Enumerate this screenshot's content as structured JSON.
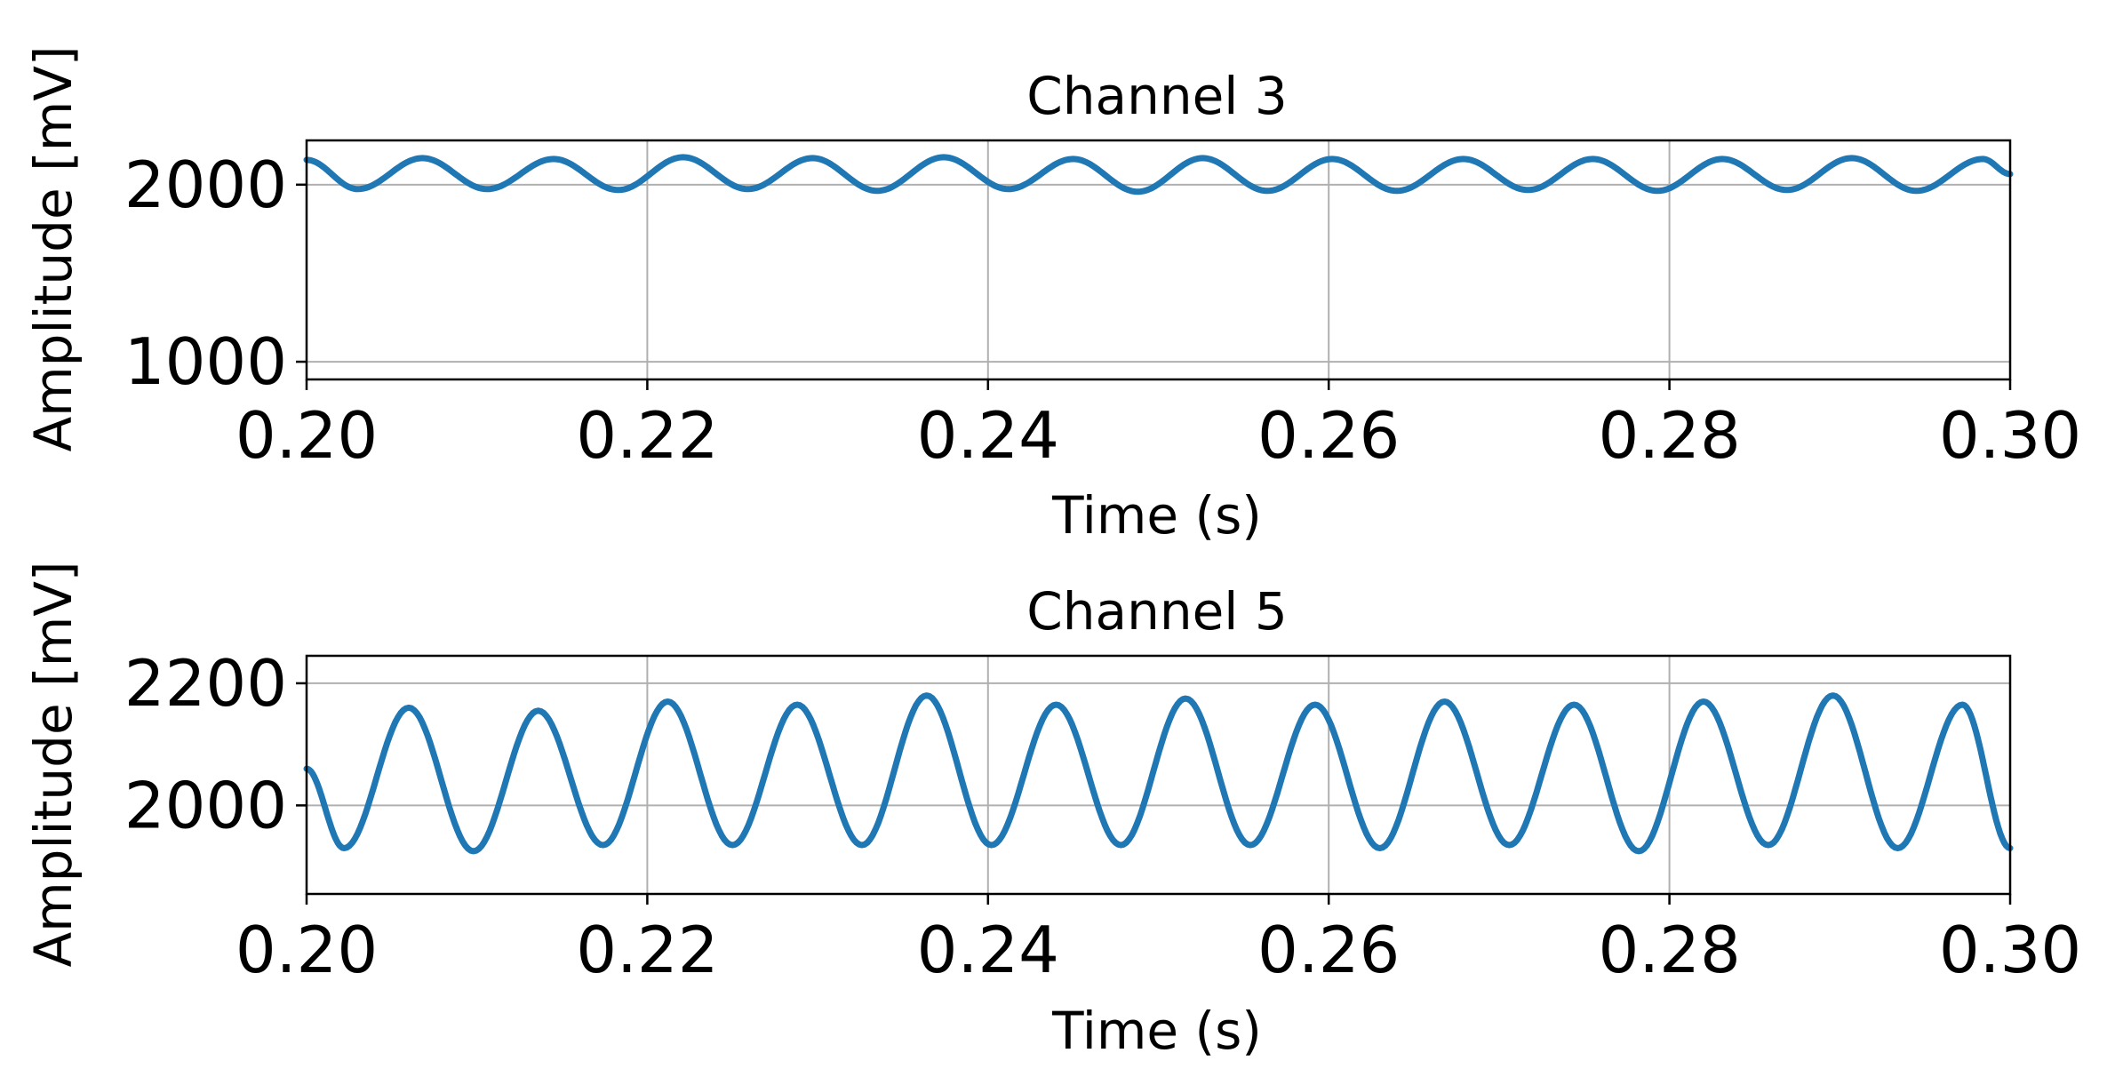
{
  "chart_data": [
    {
      "type": "line",
      "title": "Channel 3",
      "xlabel": "Time (s)",
      "ylabel": "Amplitude [mV]",
      "xlim": [
        0.2,
        0.3
      ],
      "ylim": [
        900,
        2250
      ],
      "xticks": [
        0.2,
        0.22,
        0.24,
        0.26,
        0.28,
        0.3
      ],
      "xtick_labels": [
        "0.20",
        "0.22",
        "0.24",
        "0.26",
        "0.28",
        "0.30"
      ],
      "yticks": [
        1000,
        2000
      ],
      "ytick_labels": [
        "1000",
        "2000"
      ],
      "grid": true,
      "series": [
        {
          "color": "#1f77b4",
          "x": [
            0.2,
            0.203,
            0.2068,
            0.2106,
            0.2145,
            0.2183,
            0.2221,
            0.2259,
            0.2297,
            0.2335,
            0.2374,
            0.2412,
            0.245,
            0.2488,
            0.2526,
            0.2564,
            0.2602,
            0.264,
            0.2679,
            0.2717,
            0.2755,
            0.2793,
            0.2831,
            0.2869,
            0.2907,
            0.2945,
            0.2984,
            0.3
          ],
          "y": [
            2140,
            1975,
            2150,
            1975,
            2145,
            1970,
            2155,
            1975,
            2150,
            1965,
            2155,
            1975,
            2145,
            1960,
            2150,
            1965,
            2145,
            1965,
            2145,
            1970,
            2145,
            1965,
            2145,
            1970,
            2150,
            1965,
            2145,
            2060
          ]
        }
      ]
    },
    {
      "type": "line",
      "title": "Channel 5",
      "xlabel": "Time (s)",
      "ylabel": "Amplitude [mV]",
      "xlim": [
        0.2,
        0.3
      ],
      "ylim": [
        1855,
        2245
      ],
      "xticks": [
        0.2,
        0.22,
        0.24,
        0.26,
        0.28,
        0.3
      ],
      "xtick_labels": [
        "0.20",
        "0.22",
        "0.24",
        "0.26",
        "0.28",
        "0.30"
      ],
      "yticks": [
        2000,
        2200
      ],
      "ytick_labels": [
        "2000",
        "2200"
      ],
      "grid": true,
      "series": [
        {
          "color": "#1f77b4",
          "x": [
            0.2,
            0.2022,
            0.206,
            0.2098,
            0.2136,
            0.2174,
            0.2212,
            0.225,
            0.2288,
            0.2326,
            0.2364,
            0.2402,
            0.244,
            0.2478,
            0.2516,
            0.2554,
            0.2592,
            0.263,
            0.2668,
            0.2706,
            0.2744,
            0.2782,
            0.282,
            0.2858,
            0.2896,
            0.2934,
            0.2972,
            0.3
          ],
          "y": [
            2060,
            1930,
            2160,
            1925,
            2155,
            1935,
            2170,
            1935,
            2165,
            1935,
            2180,
            1935,
            2165,
            1935,
            2175,
            1935,
            2165,
            1930,
            2170,
            1935,
            2165,
            1925,
            2170,
            1935,
            2180,
            1930,
            2165,
            1930
          ]
        }
      ]
    }
  ]
}
